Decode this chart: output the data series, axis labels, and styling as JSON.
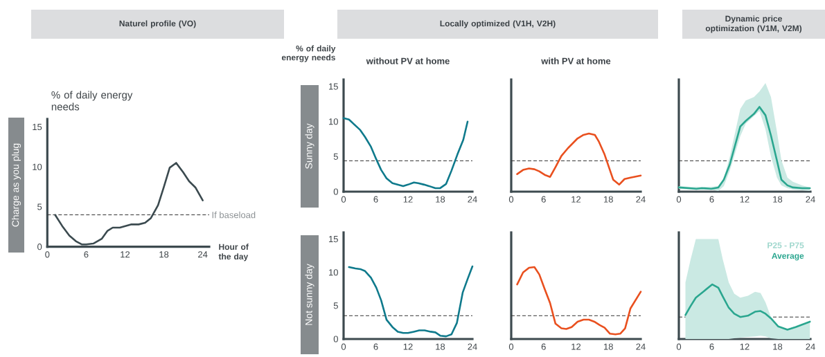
{
  "chart_data": [
    {
      "type": "line",
      "title": "Naturel profile (VO)",
      "ylabel": "% of daily energy needs",
      "xlabel": "Hour of the day",
      "annotations": [
        "Charge as you plug"
      ],
      "xlim": [
        0,
        25
      ],
      "ylim": [
        0,
        16
      ],
      "xticks": [
        0,
        6,
        12,
        18,
        24
      ],
      "yticks": [
        0,
        5,
        10,
        15
      ],
      "series": [
        {
          "color": "#3b4a4f",
          "x": [
            1.2,
            2.3,
            3.4,
            4.4,
            5.3,
            6.0,
            7.1,
            8.4,
            9.3,
            10.1,
            11.2,
            12.1,
            13.0,
            14.1,
            15.1,
            16.0,
            17.1,
            18.0,
            18.9,
            19.9,
            21.0,
            21.9,
            22.9,
            24.0
          ],
          "values": [
            4.0,
            2.6,
            1.4,
            0.7,
            0.3,
            0.3,
            0.4,
            1.0,
            2.0,
            2.4,
            2.4,
            2.6,
            2.8,
            2.8,
            3.0,
            3.6,
            5.2,
            7.5,
            9.9,
            10.5,
            9.3,
            8.2,
            7.4,
            5.8
          ]
        }
      ],
      "ref_lines": [
        {
          "axis": "y",
          "value": 4.0,
          "label": "If baseload",
          "color": "#333333",
          "line_style": "dashed"
        }
      ]
    },
    {
      "type": "line",
      "title": "Locally optimized (V1H, V2H)",
      "subtitle": "without PV at home",
      "ylabel": "% of daily energy needs",
      "annotations": [
        "Sunny day"
      ],
      "xlim": [
        0,
        24
      ],
      "ylim": [
        0,
        16
      ],
      "xticks": [
        0,
        6,
        12,
        18,
        24
      ],
      "yticks": [
        0,
        5,
        10,
        15
      ],
      "series": [
        {
          "color": "#0f7a8c",
          "x": [
            0,
            1.0,
            3.1,
            4.0,
            5.1,
            6.1,
            7.0,
            8.0,
            9.1,
            11.1,
            12.0,
            13.1,
            13.9,
            15.0,
            15.9,
            17.1,
            18.0,
            19.1,
            20.1,
            21.2,
            22.3,
            23.1
          ],
          "values": [
            10.5,
            10.3,
            8.8,
            7.8,
            6.4,
            4.6,
            3.1,
            1.9,
            1.2,
            0.8,
            1.0,
            1.3,
            1.2,
            1.0,
            0.8,
            0.5,
            0.5,
            1.1,
            3.0,
            5.3,
            7.4,
            10.0
          ]
        }
      ],
      "ref_lines": [
        {
          "axis": "y",
          "value": 4.4,
          "color": "#333333",
          "line_style": "dashed"
        }
      ]
    },
    {
      "type": "line",
      "subtitle": "with PV at home",
      "xlim": [
        0,
        24
      ],
      "ylim": [
        0,
        16
      ],
      "xticks": [
        0,
        6,
        12,
        18,
        24
      ],
      "tick_labels": "x",
      "series": [
        {
          "color": "#e9501f",
          "x": [
            1.1,
            2.2,
            3.3,
            4.3,
            5.2,
            6.2,
            7.2,
            8.2,
            9.3,
            10.5,
            12.3,
            13.4,
            14.4,
            15.5,
            16.2,
            17.3,
            18.9,
            20.0,
            21.0,
            22.1,
            24.0
          ],
          "values": [
            2.5,
            3.1,
            3.3,
            3.2,
            2.9,
            2.4,
            2.1,
            3.5,
            5.1,
            6.2,
            7.6,
            8.1,
            8.3,
            8.1,
            7.2,
            5.3,
            1.7,
            1.0,
            1.8,
            2.0,
            2.3
          ]
        }
      ],
      "ref_lines": [
        {
          "axis": "y",
          "value": 4.4,
          "color": "#333333",
          "line_style": "dashed"
        }
      ]
    },
    {
      "type": "line",
      "title": "Dynamic price optimization (V1M, V2M)",
      "xlim": [
        0,
        24
      ],
      "ylim": [
        0,
        16
      ],
      "xticks": [
        0,
        6,
        12,
        18,
        24
      ],
      "tick_labels": "x",
      "series": [
        {
          "color": "#2aa68f",
          "x": [
            0,
            1.9,
            3.2,
            4.2,
            5.9,
            7.2,
            8.2,
            9.3,
            11.2,
            12.2,
            13.7,
            14.7,
            15.8,
            16.8,
            17.9,
            18.7,
            19.8,
            20.8,
            22.5,
            23.9
          ],
          "values": [
            0.6,
            0.5,
            0.4,
            0.5,
            0.4,
            0.6,
            1.7,
            3.9,
            9.3,
            10.1,
            11.1,
            12.1,
            10.9,
            8.0,
            4.4,
            1.7,
            0.9,
            0.6,
            0.5,
            0.5
          ],
          "upper": [
            0.8,
            0.7,
            0.7,
            0.7,
            0.7,
            0.8,
            1.9,
            5.0,
            11.8,
            13.0,
            13.5,
            14.3,
            15.5,
            13.5,
            8.5,
            4.5,
            2.0,
            1.4,
            0.9,
            0.6
          ],
          "lower": [
            0.4,
            0.3,
            0.3,
            0.3,
            0.3,
            0.1,
            0.8,
            3.0,
            7.9,
            9.7,
            10.8,
            11.5,
            8.9,
            5.0,
            2.0,
            0.9,
            0.5,
            0.3,
            0.2,
            0.1
          ]
        }
      ],
      "ref_lines": [
        {
          "axis": "y",
          "value": 4.4,
          "color": "#333333",
          "line_style": "dashed"
        }
      ]
    },
    {
      "type": "line",
      "annotations": [
        "Not sunny day"
      ],
      "xlim": [
        0,
        24
      ],
      "ylim": [
        0,
        16
      ],
      "xticks": [
        0,
        6,
        12,
        18,
        24
      ],
      "yticks": [
        0,
        5,
        10,
        15
      ],
      "series": [
        {
          "color": "#0f7a8c",
          "x": [
            1.0,
            2.2,
            3.1,
            4.0,
            5.1,
            6.1,
            7.0,
            8.0,
            9.1,
            10.1,
            11.1,
            12.0,
            13.1,
            14.1,
            15.1,
            16.2,
            17.1,
            18.0,
            19.1,
            20.1,
            21.1,
            22.2,
            23.1,
            24.0
          ],
          "values": [
            10.8,
            10.6,
            10.5,
            10.2,
            9.2,
            7.7,
            5.8,
            2.9,
            1.8,
            1.1,
            0.9,
            0.9,
            1.1,
            1.3,
            1.3,
            1.1,
            1.0,
            0.5,
            0.4,
            0.7,
            2.4,
            7.0,
            9.0,
            10.9
          ]
        }
      ],
      "ref_lines": [
        {
          "axis": "y",
          "value": 3.5,
          "color": "#333333",
          "line_style": "dashed"
        }
      ]
    },
    {
      "type": "line",
      "xlim": [
        0,
        24
      ],
      "ylim": [
        0,
        16
      ],
      "xticks": [
        0,
        6,
        12,
        18,
        24
      ],
      "tick_labels": "x",
      "series": [
        {
          "color": "#e9501f",
          "x": [
            1.1,
            2.2,
            3.3,
            4.3,
            5.2,
            6.2,
            7.2,
            8.2,
            9.3,
            10.2,
            11.2,
            12.3,
            13.4,
            14.4,
            15.4,
            16.4,
            17.3,
            18.3,
            19.3,
            20.2,
            21.1,
            22.1,
            24.0
          ],
          "values": [
            8.2,
            10.0,
            10.7,
            10.8,
            9.7,
            7.5,
            5.4,
            2.3,
            1.6,
            1.5,
            1.8,
            2.6,
            2.9,
            2.9,
            2.6,
            2.1,
            1.7,
            0.8,
            0.7,
            0.8,
            1.6,
            4.6,
            7.1
          ]
        }
      ],
      "ref_lines": [
        {
          "axis": "y",
          "value": 3.5,
          "color": "#333333",
          "line_style": "dashed"
        }
      ]
    },
    {
      "type": "line",
      "annotations": [
        "P25 - P75"
      ],
      "legend": "top right",
      "xlim": [
        0,
        24
      ],
      "ylim": [
        0,
        16
      ],
      "xticks": [
        0,
        6,
        12,
        18,
        24
      ],
      "tick_labels": "x",
      "series": [
        {
          "name": "Average",
          "color": "#2aa68f",
          "x": [
            1.2,
            2.1,
            3.1,
            4.6,
            6.1,
            7.2,
            8.0,
            9.1,
            10.1,
            11.2,
            12.6,
            13.9,
            14.9,
            15.8,
            16.8,
            18.1,
            19.8,
            21.3,
            22.3,
            23.9
          ],
          "values": [
            3.6,
            4.9,
            6.2,
            7.2,
            8.2,
            7.7,
            6.4,
            4.7,
            3.8,
            3.3,
            3.5,
            4.1,
            4.2,
            3.8,
            3.1,
            1.9,
            1.4,
            1.8,
            2.1,
            2.6
          ],
          "upper": [
            8.5,
            11.8,
            15,
            15,
            15,
            15,
            12.0,
            8.5,
            6.8,
            6.2,
            6.5,
            7.1,
            6.9,
            5.5,
            3.3,
            2.0,
            1.5,
            1.9,
            2.2,
            2.7
          ],
          "lower": [
            0,
            0,
            0,
            0,
            0,
            0,
            0,
            0,
            0.1,
            0.2,
            0.3,
            0.4,
            0.5,
            0.4,
            0.1,
            0,
            0,
            0,
            0,
            0
          ]
        }
      ],
      "ref_lines": [
        {
          "axis": "y",
          "value": 3.3,
          "color": "#333333",
          "line_style": "dashed"
        }
      ]
    }
  ]
}
